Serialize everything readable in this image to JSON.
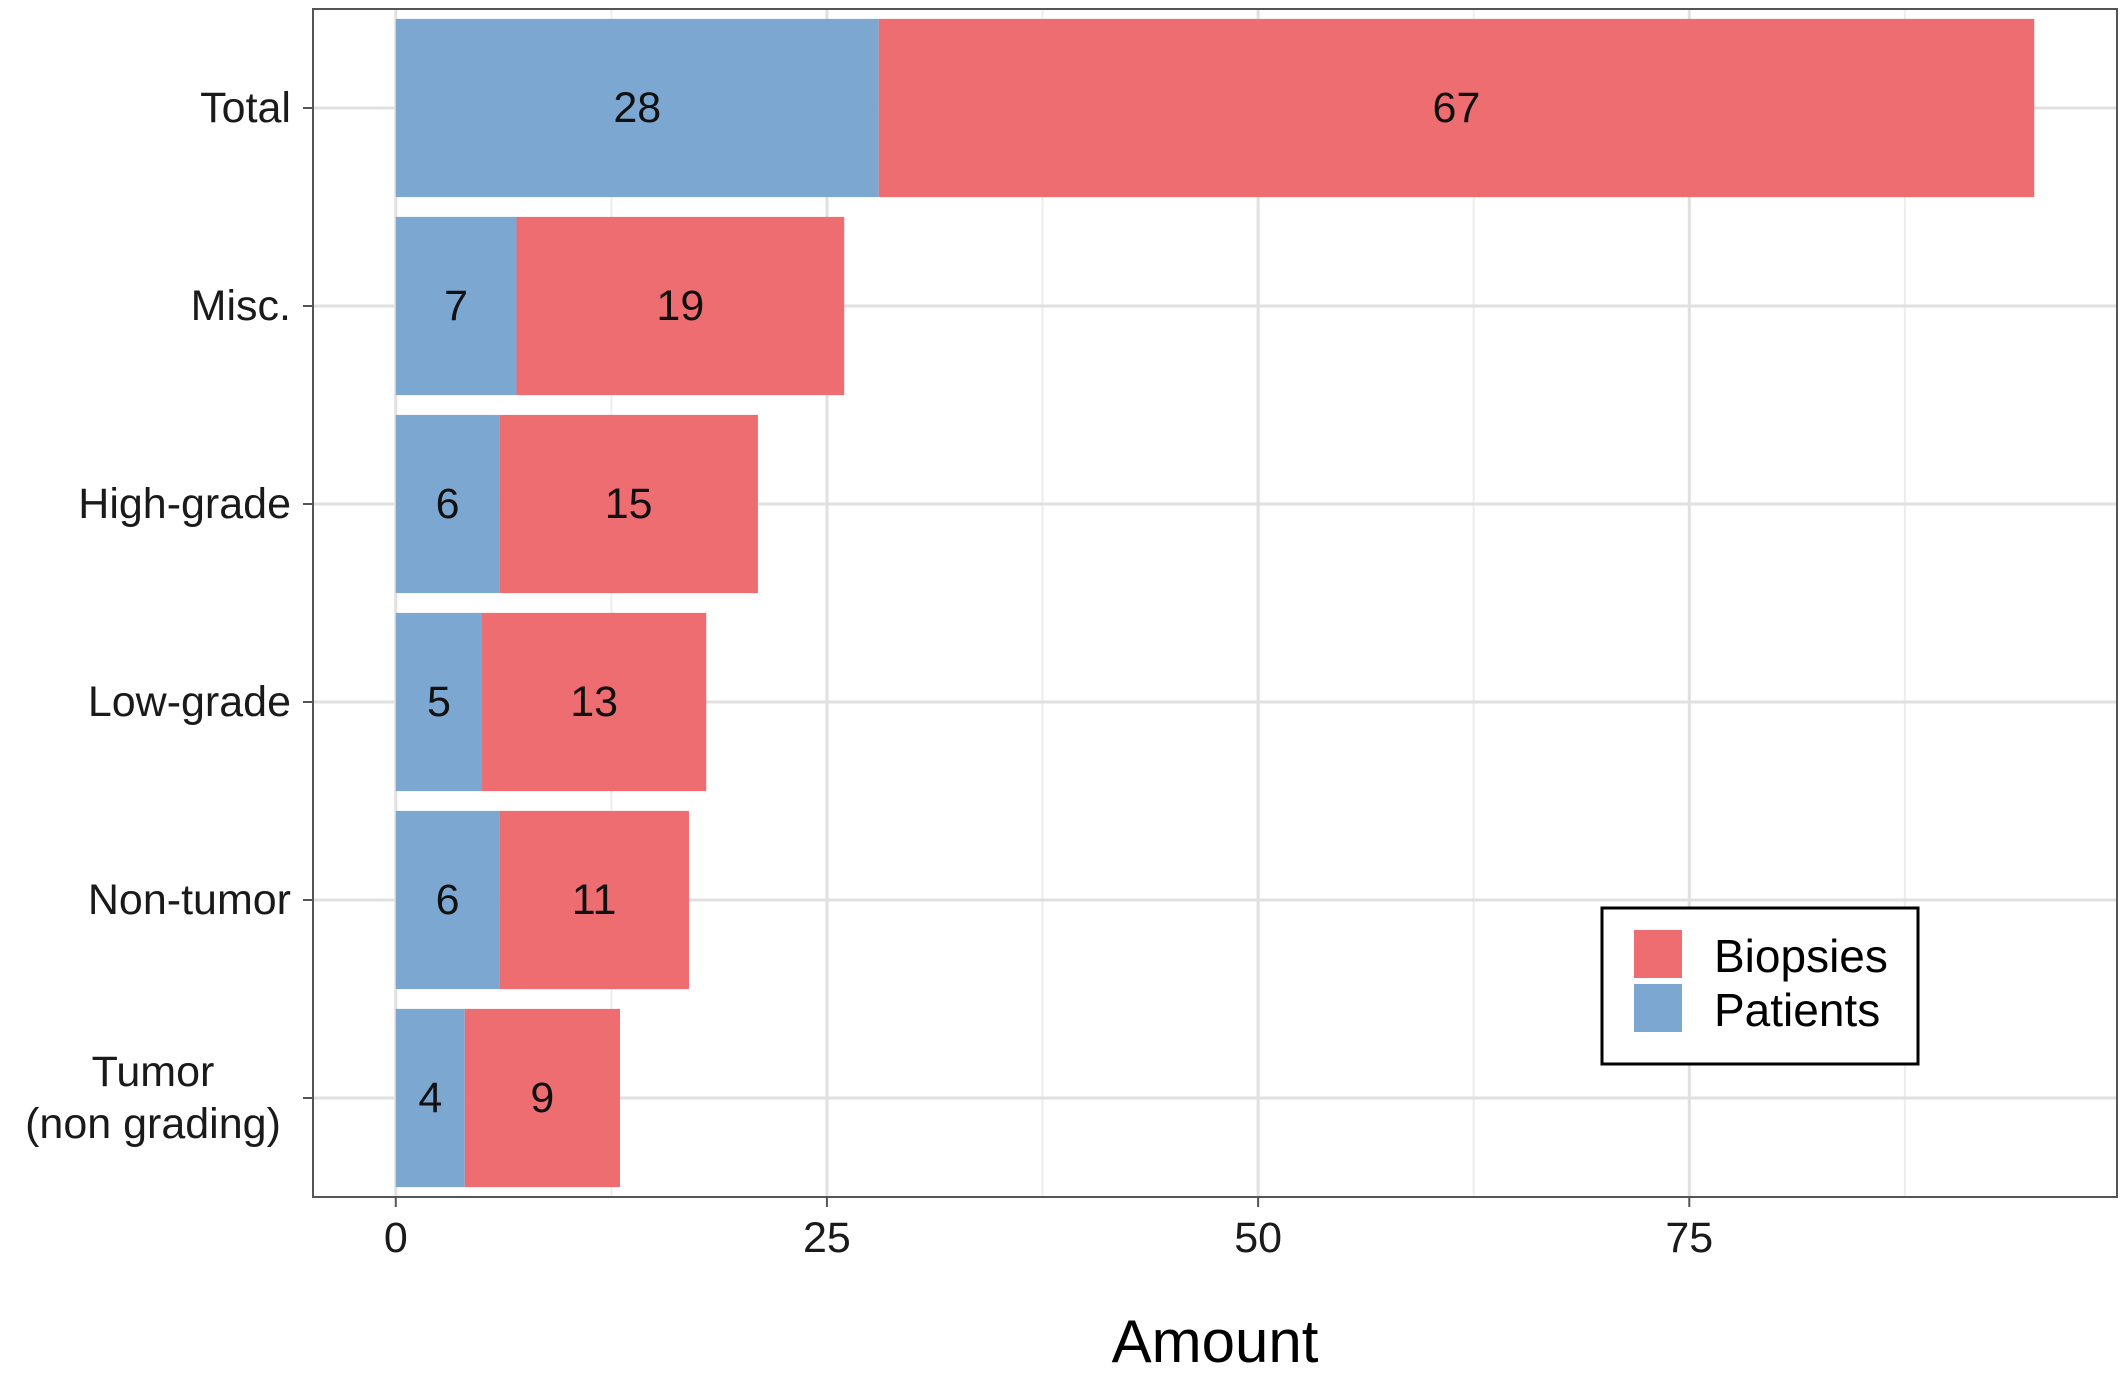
{
  "chart_data": {
    "type": "bar",
    "orientation": "horizontal",
    "stacked": true,
    "categories": [
      "Total",
      "Misc.",
      "High-grade",
      "Low-grade",
      "Non-tumor",
      "Tumor\n(non grading)"
    ],
    "series": [
      {
        "name": "Patients",
        "values": [
          28,
          7,
          6,
          5,
          6,
          4
        ],
        "color": "#7ba7d1"
      },
      {
        "name": "Biopsies",
        "values": [
          67,
          19,
          15,
          13,
          11,
          9
        ],
        "color": "#ee6d71"
      }
    ],
    "xlabel": "Amount",
    "ylabel": "",
    "xlim": [
      -4.8,
      99.8
    ],
    "xticks": [
      0,
      25,
      50,
      75
    ],
    "grid": true,
    "legend": {
      "position": "bottom-right",
      "entries": [
        "Biopsies",
        "Patients"
      ]
    }
  }
}
